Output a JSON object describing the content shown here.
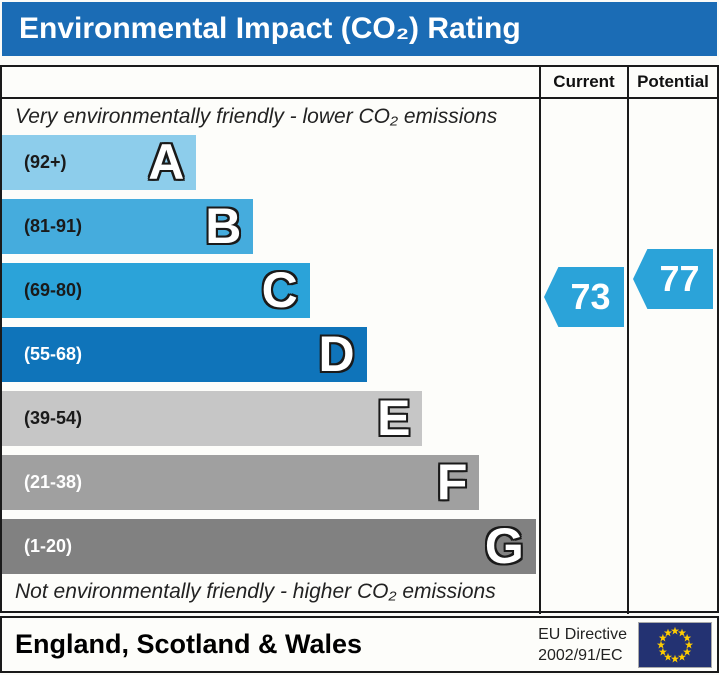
{
  "title": "Environmental Impact (CO₂) Rating",
  "colors": {
    "title_bg": "#1b6cb5",
    "title_text": "#ffffff",
    "arrow": "#2ba3d9",
    "flag_bg": "#233272",
    "flag_star": "#ffcc00"
  },
  "table": {
    "current_header": "Current",
    "potential_header": "Potential",
    "top_note": "Very environmentally friendly - lower CO₂ emissions",
    "bottom_note": "Not environmentally friendly - higher CO₂ emissions"
  },
  "chart_data": {
    "type": "bar",
    "title": "Environmental Impact (CO₂) Rating",
    "current": 73,
    "potential": 77,
    "bands": [
      {
        "letter": "A",
        "range": "(92+)",
        "min": 92,
        "max": 100,
        "color": "#8dcdeb",
        "text_color": "#1a1a1a",
        "width_pct": 36.2
      },
      {
        "letter": "B",
        "range": "(81-91)",
        "min": 81,
        "max": 91,
        "color": "#45acdd",
        "text_color": "#1a1a1a",
        "width_pct": 46.8
      },
      {
        "letter": "C",
        "range": "(69-80)",
        "min": 69,
        "max": 80,
        "color": "#2ba3d9",
        "text_color": "#1a1a1a",
        "width_pct": 57.3
      },
      {
        "letter": "D",
        "range": "(55-68)",
        "min": 55,
        "max": 68,
        "color": "#0f74ba",
        "text_color": "#ffffff",
        "width_pct": 67.9
      },
      {
        "letter": "E",
        "range": "(39-54)",
        "min": 39,
        "max": 54,
        "color": "#c6c6c6",
        "text_color": "#1a1a1a",
        "width_pct": 78.3
      },
      {
        "letter": "F",
        "range": "(21-38)",
        "min": 21,
        "max": 38,
        "color": "#a0a0a0",
        "text_color": "#ffffff",
        "width_pct": 88.9
      },
      {
        "letter": "G",
        "range": "(1-20)",
        "min": 1,
        "max": 20,
        "color": "#818181",
        "text_color": "#ffffff",
        "width_pct": 99.4
      }
    ]
  },
  "footer": {
    "region": "England, Scotland & Wales",
    "directive_line1": "EU Directive",
    "directive_line2": "2002/91/EC"
  }
}
